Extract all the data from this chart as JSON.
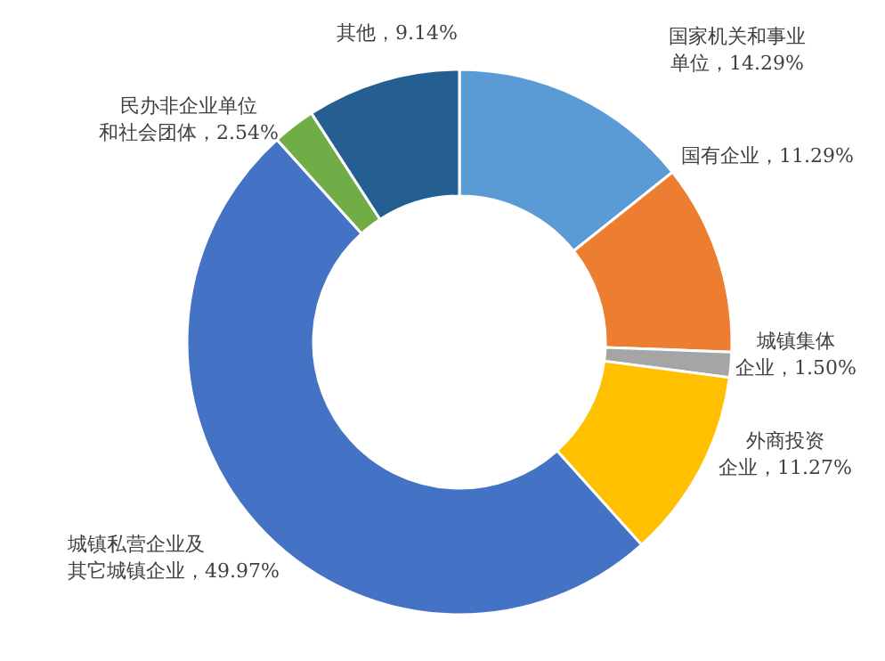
{
  "chart_data": {
    "type": "donut",
    "categories": [
      "国家机关和事业单位",
      "国有企业",
      "城镇集体企业",
      "外商投资企业",
      "城镇私营企业及其它城镇企业",
      "民办非企业单位和社会团体",
      "其他"
    ],
    "values": [
      14.29,
      11.29,
      1.5,
      11.27,
      49.97,
      2.54,
      9.14
    ],
    "value_labels": [
      "14.29%",
      "11.29%",
      "1.50%",
      "11.27%",
      "49.97%",
      "2.54%",
      "9.14%"
    ],
    "colors": [
      "#5b9bd5",
      "#ed7d31",
      "#a5a5a5",
      "#ffc000",
      "#4472c4",
      "#70ad47",
      "#255e91"
    ],
    "legend": false
  }
}
